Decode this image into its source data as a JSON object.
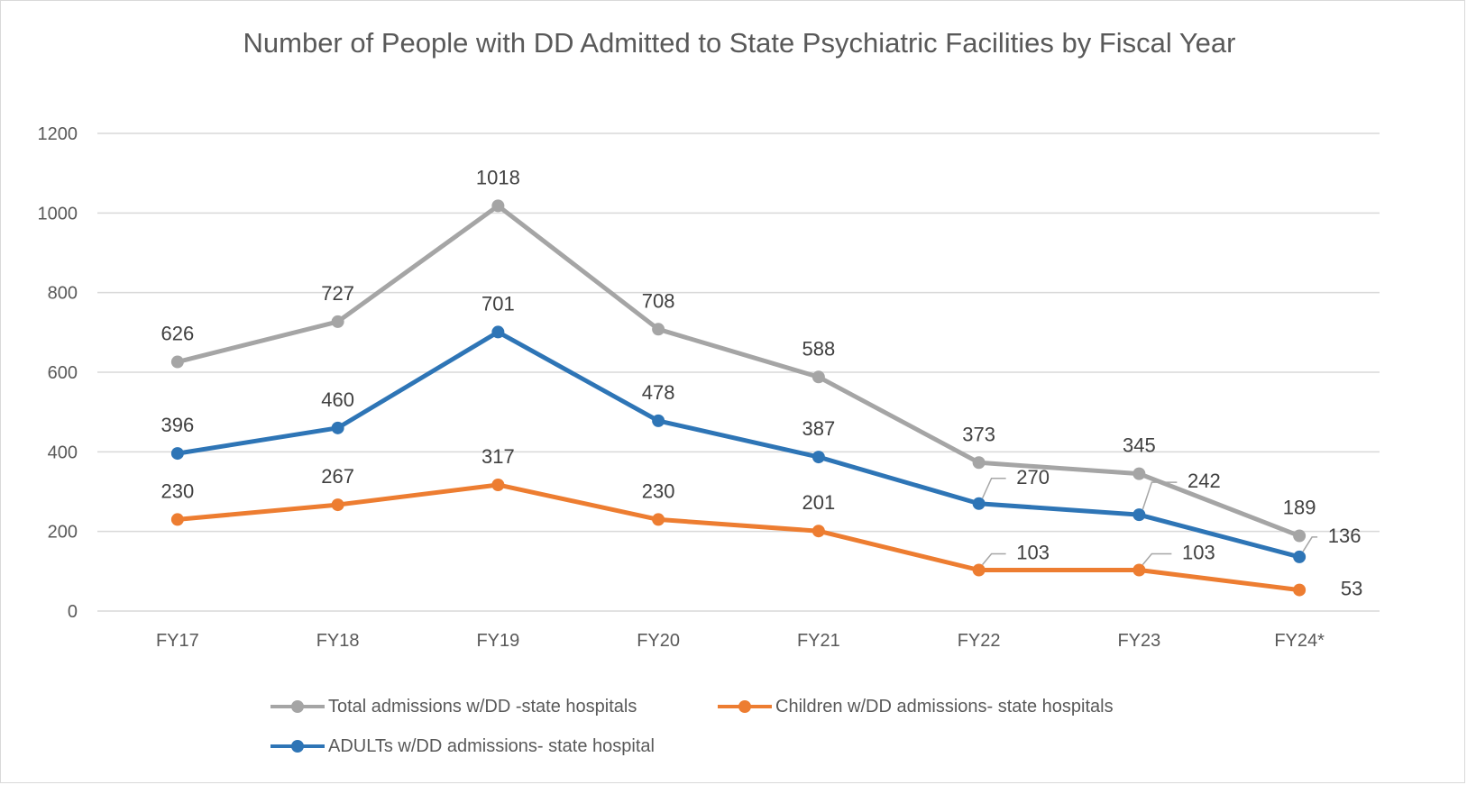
{
  "chart_data": {
    "type": "line",
    "title": "Number of People with DD Admitted to State Psychiatric Facilities by Fiscal Year",
    "categories": [
      "FY17",
      "FY18",
      "FY19",
      "FY20",
      "FY21",
      "FY22",
      "FY23",
      "FY24*"
    ],
    "ylim": [
      0,
      1200
    ],
    "yticks": [
      0,
      200,
      400,
      600,
      800,
      1000,
      1200
    ],
    "grid": true,
    "legend_position": "bottom",
    "series": [
      {
        "name": "Total admissions w/DD -state hospitals",
        "color": "#a5a5a5",
        "values": [
          626,
          727,
          1018,
          708,
          588,
          373,
          345,
          189
        ]
      },
      {
        "name": "Children w/DD admissions- state hospitals",
        "color": "#ed7d31",
        "values": [
          230,
          267,
          317,
          230,
          201,
          103,
          103,
          53
        ]
      },
      {
        "name": "ADULTs w/DD admissions- state hospital",
        "color": "#2e75b6",
        "values": [
          396,
          460,
          701,
          478,
          387,
          270,
          242,
          136
        ]
      }
    ]
  }
}
